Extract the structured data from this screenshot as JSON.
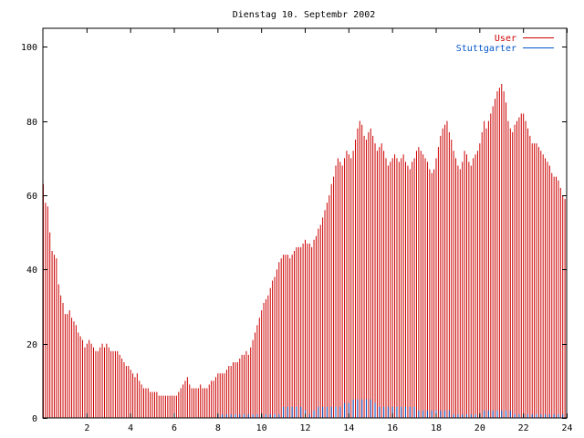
{
  "chart_data": {
    "type": "bar",
    "title": "Dienstag 10. Septembr 2002",
    "xlim": [
      0,
      24
    ],
    "ylim": [
      0,
      105
    ],
    "x_ticks": [
      2,
      4,
      6,
      8,
      10,
      12,
      14,
      16,
      18,
      20,
      22,
      24
    ],
    "y_ticks": [
      0,
      20,
      40,
      60,
      80,
      100
    ],
    "legend_position": "top-right",
    "grid": false,
    "series": [
      {
        "name": "User",
        "style": "impulses",
        "color": "#cc0000",
        "points": [
          [
            0.0,
            63
          ],
          [
            0.1,
            58
          ],
          [
            0.2,
            57
          ],
          [
            0.3,
            50
          ],
          [
            0.4,
            45
          ],
          [
            0.5,
            44
          ],
          [
            0.6,
            43
          ],
          [
            0.7,
            36
          ],
          [
            0.8,
            33
          ],
          [
            0.9,
            31
          ],
          [
            1.0,
            28
          ],
          [
            1.1,
            28
          ],
          [
            1.2,
            29
          ],
          [
            1.3,
            27
          ],
          [
            1.4,
            26
          ],
          [
            1.5,
            25
          ],
          [
            1.6,
            23
          ],
          [
            1.7,
            22
          ],
          [
            1.8,
            21
          ],
          [
            1.9,
            19
          ],
          [
            2.0,
            20
          ],
          [
            2.1,
            21
          ],
          [
            2.2,
            20
          ],
          [
            2.3,
            19
          ],
          [
            2.4,
            18
          ],
          [
            2.5,
            18
          ],
          [
            2.6,
            19
          ],
          [
            2.7,
            20
          ],
          [
            2.8,
            19
          ],
          [
            2.9,
            20
          ],
          [
            3.0,
            19
          ],
          [
            3.1,
            18
          ],
          [
            3.2,
            18
          ],
          [
            3.3,
            18
          ],
          [
            3.4,
            18
          ],
          [
            3.5,
            17
          ],
          [
            3.6,
            16
          ],
          [
            3.7,
            15
          ],
          [
            3.8,
            14
          ],
          [
            3.9,
            14
          ],
          [
            4.0,
            13
          ],
          [
            4.1,
            12
          ],
          [
            4.2,
            11
          ],
          [
            4.3,
            12
          ],
          [
            4.4,
            10
          ],
          [
            4.5,
            9
          ],
          [
            4.6,
            8
          ],
          [
            4.7,
            8
          ],
          [
            4.8,
            8
          ],
          [
            4.9,
            7
          ],
          [
            5.0,
            7
          ],
          [
            5.1,
            7
          ],
          [
            5.2,
            7
          ],
          [
            5.3,
            6
          ],
          [
            5.4,
            6
          ],
          [
            5.5,
            6
          ],
          [
            5.6,
            6
          ],
          [
            5.7,
            6
          ],
          [
            5.8,
            6
          ],
          [
            5.9,
            6
          ],
          [
            6.0,
            6
          ],
          [
            6.1,
            6
          ],
          [
            6.2,
            7
          ],
          [
            6.3,
            8
          ],
          [
            6.4,
            9
          ],
          [
            6.5,
            10
          ],
          [
            6.6,
            11
          ],
          [
            6.7,
            9
          ],
          [
            6.8,
            8
          ],
          [
            6.9,
            8
          ],
          [
            7.0,
            8
          ],
          [
            7.1,
            8
          ],
          [
            7.2,
            9
          ],
          [
            7.3,
            8
          ],
          [
            7.4,
            8
          ],
          [
            7.5,
            8
          ],
          [
            7.6,
            9
          ],
          [
            7.7,
            10
          ],
          [
            7.8,
            10
          ],
          [
            7.9,
            11
          ],
          [
            8.0,
            12
          ],
          [
            8.1,
            12
          ],
          [
            8.2,
            12
          ],
          [
            8.3,
            12
          ],
          [
            8.4,
            13
          ],
          [
            8.5,
            14
          ],
          [
            8.6,
            14
          ],
          [
            8.7,
            15
          ],
          [
            8.8,
            15
          ],
          [
            8.9,
            15
          ],
          [
            9.0,
            16
          ],
          [
            9.1,
            17
          ],
          [
            9.2,
            17
          ],
          [
            9.3,
            18
          ],
          [
            9.4,
            17
          ],
          [
            9.5,
            19
          ],
          [
            9.6,
            21
          ],
          [
            9.7,
            23
          ],
          [
            9.8,
            25
          ],
          [
            9.9,
            27
          ],
          [
            10.0,
            29
          ],
          [
            10.1,
            31
          ],
          [
            10.2,
            32
          ],
          [
            10.3,
            33
          ],
          [
            10.4,
            35
          ],
          [
            10.5,
            37
          ],
          [
            10.6,
            38
          ],
          [
            10.7,
            40
          ],
          [
            10.8,
            42
          ],
          [
            10.9,
            43
          ],
          [
            11.0,
            44
          ],
          [
            11.1,
            44
          ],
          [
            11.2,
            44
          ],
          [
            11.3,
            43
          ],
          [
            11.4,
            44
          ],
          [
            11.5,
            45
          ],
          [
            11.6,
            46
          ],
          [
            11.7,
            46
          ],
          [
            11.8,
            46
          ],
          [
            11.9,
            47
          ],
          [
            12.0,
            48
          ],
          [
            12.1,
            47
          ],
          [
            12.2,
            47
          ],
          [
            12.3,
            46
          ],
          [
            12.4,
            48
          ],
          [
            12.5,
            49
          ],
          [
            12.6,
            51
          ],
          [
            12.7,
            52
          ],
          [
            12.8,
            54
          ],
          [
            12.9,
            56
          ],
          [
            13.0,
            58
          ],
          [
            13.1,
            60
          ],
          [
            13.2,
            63
          ],
          [
            13.3,
            65
          ],
          [
            13.4,
            68
          ],
          [
            13.5,
            70
          ],
          [
            13.6,
            69
          ],
          [
            13.7,
            68
          ],
          [
            13.8,
            70
          ],
          [
            13.9,
            72
          ],
          [
            14.0,
            71
          ],
          [
            14.1,
            70
          ],
          [
            14.2,
            72
          ],
          [
            14.3,
            75
          ],
          [
            14.4,
            78
          ],
          [
            14.5,
            80
          ],
          [
            14.6,
            79
          ],
          [
            14.7,
            76
          ],
          [
            14.8,
            75
          ],
          [
            14.9,
            77
          ],
          [
            15.0,
            78
          ],
          [
            15.1,
            76
          ],
          [
            15.2,
            74
          ],
          [
            15.3,
            72
          ],
          [
            15.4,
            73
          ],
          [
            15.5,
            74
          ],
          [
            15.6,
            72
          ],
          [
            15.7,
            70
          ],
          [
            15.8,
            68
          ],
          [
            15.9,
            69
          ],
          [
            16.0,
            70
          ],
          [
            16.1,
            71
          ],
          [
            16.2,
            70
          ],
          [
            16.3,
            69
          ],
          [
            16.4,
            70
          ],
          [
            16.5,
            71
          ],
          [
            16.6,
            69
          ],
          [
            16.7,
            68
          ],
          [
            16.8,
            67
          ],
          [
            16.9,
            69
          ],
          [
            17.0,
            70
          ],
          [
            17.1,
            72
          ],
          [
            17.2,
            73
          ],
          [
            17.3,
            72
          ],
          [
            17.4,
            71
          ],
          [
            17.5,
            70
          ],
          [
            17.6,
            69
          ],
          [
            17.7,
            67
          ],
          [
            17.8,
            66
          ],
          [
            17.9,
            67
          ],
          [
            18.0,
            70
          ],
          [
            18.1,
            73
          ],
          [
            18.2,
            76
          ],
          [
            18.3,
            78
          ],
          [
            18.4,
            79
          ],
          [
            18.5,
            80
          ],
          [
            18.6,
            77
          ],
          [
            18.7,
            75
          ],
          [
            18.8,
            72
          ],
          [
            18.9,
            70
          ],
          [
            19.0,
            68
          ],
          [
            19.1,
            67
          ],
          [
            19.2,
            69
          ],
          [
            19.3,
            72
          ],
          [
            19.4,
            71
          ],
          [
            19.5,
            69
          ],
          [
            19.6,
            68
          ],
          [
            19.7,
            70
          ],
          [
            19.8,
            71
          ],
          [
            19.9,
            72
          ],
          [
            20.0,
            74
          ],
          [
            20.1,
            77
          ],
          [
            20.2,
            80
          ],
          [
            20.3,
            78
          ],
          [
            20.4,
            80
          ],
          [
            20.5,
            82
          ],
          [
            20.6,
            84
          ],
          [
            20.7,
            86
          ],
          [
            20.8,
            88
          ],
          [
            20.9,
            89
          ],
          [
            21.0,
            90
          ],
          [
            21.1,
            88
          ],
          [
            21.2,
            85
          ],
          [
            21.3,
            80
          ],
          [
            21.4,
            78
          ],
          [
            21.5,
            77
          ],
          [
            21.6,
            79
          ],
          [
            21.7,
            80
          ],
          [
            21.8,
            81
          ],
          [
            21.9,
            82
          ],
          [
            22.0,
            82
          ],
          [
            22.1,
            80
          ],
          [
            22.2,
            78
          ],
          [
            22.3,
            76
          ],
          [
            22.4,
            74
          ],
          [
            22.5,
            74
          ],
          [
            22.6,
            74
          ],
          [
            22.7,
            73
          ],
          [
            22.8,
            72
          ],
          [
            22.9,
            71
          ],
          [
            23.0,
            70
          ],
          [
            23.1,
            69
          ],
          [
            23.2,
            68
          ],
          [
            23.3,
            66
          ],
          [
            23.4,
            65
          ],
          [
            23.5,
            65
          ],
          [
            23.6,
            64
          ],
          [
            23.7,
            62
          ],
          [
            23.8,
            60
          ],
          [
            23.9,
            59
          ]
        ]
      },
      {
        "name": "Stuttgarter",
        "style": "impulses",
        "color": "#0055cc",
        "points": [
          [
            8.0,
            1
          ],
          [
            8.2,
            1
          ],
          [
            8.4,
            1
          ],
          [
            8.6,
            1
          ],
          [
            8.8,
            1
          ],
          [
            9.0,
            1
          ],
          [
            9.2,
            1
          ],
          [
            9.4,
            1
          ],
          [
            9.6,
            1
          ],
          [
            9.8,
            1
          ],
          [
            10.0,
            1
          ],
          [
            10.2,
            1
          ],
          [
            10.4,
            1
          ],
          [
            10.6,
            1
          ],
          [
            10.8,
            1
          ],
          [
            11.0,
            3
          ],
          [
            11.2,
            3
          ],
          [
            11.4,
            3
          ],
          [
            11.6,
            3
          ],
          [
            11.8,
            3
          ],
          [
            12.0,
            2
          ],
          [
            12.2,
            1
          ],
          [
            12.4,
            2
          ],
          [
            12.6,
            3
          ],
          [
            12.8,
            3
          ],
          [
            13.0,
            3
          ],
          [
            13.2,
            3
          ],
          [
            13.4,
            3
          ],
          [
            13.6,
            3
          ],
          [
            13.8,
            4
          ],
          [
            14.0,
            4
          ],
          [
            14.2,
            5
          ],
          [
            14.4,
            5
          ],
          [
            14.6,
            5
          ],
          [
            14.8,
            5
          ],
          [
            15.0,
            5
          ],
          [
            15.2,
            4
          ],
          [
            15.4,
            3
          ],
          [
            15.6,
            3
          ],
          [
            15.8,
            3
          ],
          [
            16.0,
            3
          ],
          [
            16.2,
            3
          ],
          [
            16.4,
            3
          ],
          [
            16.6,
            3
          ],
          [
            16.8,
            3
          ],
          [
            17.0,
            3
          ],
          [
            17.2,
            2
          ],
          [
            17.4,
            2
          ],
          [
            17.6,
            2
          ],
          [
            17.8,
            2
          ],
          [
            18.0,
            2
          ],
          [
            18.2,
            2
          ],
          [
            18.4,
            2
          ],
          [
            18.6,
            2
          ],
          [
            18.8,
            1
          ],
          [
            19.0,
            1
          ],
          [
            19.2,
            1
          ],
          [
            19.4,
            1
          ],
          [
            19.6,
            1
          ],
          [
            19.8,
            1
          ],
          [
            20.0,
            1
          ],
          [
            20.2,
            2
          ],
          [
            20.4,
            2
          ],
          [
            20.6,
            2
          ],
          [
            20.8,
            2
          ],
          [
            21.0,
            2
          ],
          [
            21.2,
            2
          ],
          [
            21.4,
            2
          ],
          [
            21.6,
            1
          ],
          [
            21.8,
            1
          ],
          [
            22.0,
            1
          ],
          [
            22.2,
            1
          ],
          [
            22.4,
            1
          ],
          [
            22.6,
            1
          ],
          [
            22.8,
            1
          ],
          [
            23.0,
            1
          ],
          [
            23.2,
            1
          ],
          [
            23.4,
            1
          ],
          [
            23.6,
            1
          ],
          [
            23.8,
            1
          ]
        ]
      }
    ]
  }
}
